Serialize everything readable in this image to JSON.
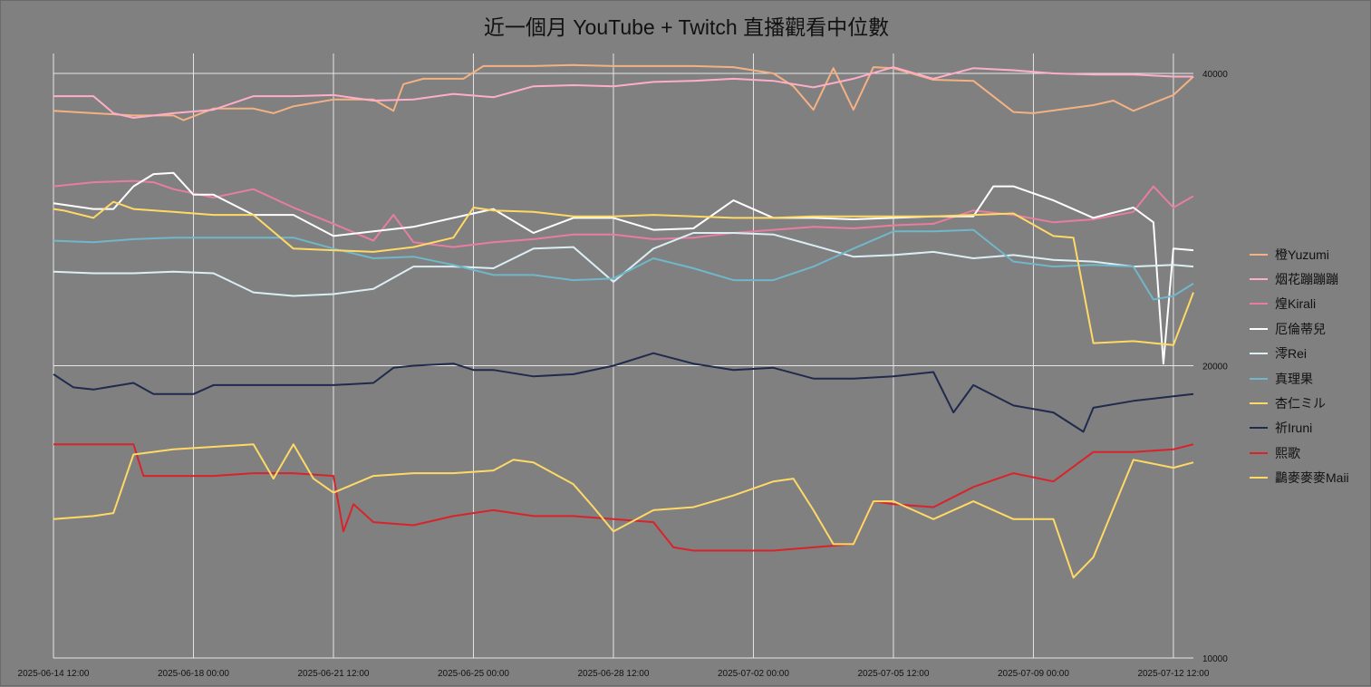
{
  "chart_data": {
    "type": "line",
    "title": "近一個月 YouTube + Twitch 直播觀看中位數",
    "xlabel": "",
    "ylabel": "",
    "y_scale": "log",
    "ylim": [
      10000,
      40000
    ],
    "y_ticks": [
      10000,
      20000,
      40000
    ],
    "y_tick_labels": [
      "10000",
      "20000",
      "40000"
    ],
    "x_tick_labels": [
      "2025-06-14 12:00",
      "2025-06-18 00:00",
      "2025-06-21 12:00",
      "2025-06-25 00:00",
      "2025-06-28 12:00",
      "2025-07-02 00:00",
      "2025-07-05 12:00",
      "2025-07-09 00:00",
      "2025-07-12 12:00"
    ],
    "xlim": [
      "2025-06-14 12:00",
      "2025-07-13 00:00"
    ],
    "grid": true,
    "legend_position": "right",
    "series": [
      {
        "name": "橙Yuzumi",
        "color": "#f4b183",
        "x": [
          "2025-06-14 12:00",
          "2025-06-15 12:00",
          "2025-06-16 12:00",
          "2025-06-17 12:00",
          "2025-06-17 18:00",
          "2025-06-18 12:00",
          "2025-06-19 12:00",
          "2025-06-20 00:00",
          "2025-06-20 12:00",
          "2025-06-21 12:00",
          "2025-06-22 12:00",
          "2025-06-23 00:00",
          "2025-06-23 06:00",
          "2025-06-23 18:00",
          "2025-06-24 18:00",
          "2025-06-25 06:00",
          "2025-06-26 12:00",
          "2025-06-27 12:00",
          "2025-06-28 12:00",
          "2025-06-29 12:00",
          "2025-06-30 12:00",
          "2025-07-01 12:00",
          "2025-07-02 12:00",
          "2025-07-03 00:00",
          "2025-07-03 12:00",
          "2025-07-04 00:00",
          "2025-07-04 12:00",
          "2025-07-05 00:00",
          "2025-07-05 12:00",
          "2025-07-06 12:00",
          "2025-07-07 12:00",
          "2025-07-08 12:00",
          "2025-07-09 00:00",
          "2025-07-10 12:00",
          "2025-07-11 00:00",
          "2025-07-11 12:00",
          "2025-07-12 12:00",
          "2025-07-13 00:00"
        ],
        "y": [
          36600,
          36400,
          36200,
          36200,
          35800,
          36800,
          36800,
          36400,
          37000,
          37600,
          37600,
          36600,
          39000,
          39500,
          39500,
          40700,
          40700,
          40800,
          40700,
          40700,
          40700,
          40600,
          40000,
          38800,
          36700,
          40500,
          36700,
          40600,
          40500,
          39400,
          39300,
          36500,
          36400,
          37100,
          37500,
          36600,
          38000,
          39700
        ]
      },
      {
        "name": "烟花蹦蹦蹦",
        "color": "#ffaec9",
        "x": [
          "2025-06-14 12:00",
          "2025-06-15 12:00",
          "2025-06-16 00:00",
          "2025-06-16 12:00",
          "2025-06-17 12:00",
          "2025-06-18 12:00",
          "2025-06-19 12:00",
          "2025-06-20 12:00",
          "2025-06-21 12:00",
          "2025-06-22 12:00",
          "2025-06-23 12:00",
          "2025-06-24 12:00",
          "2025-06-25 12:00",
          "2025-06-26 12:00",
          "2025-06-27 12:00",
          "2025-06-28 12:00",
          "2025-06-29 12:00",
          "2025-06-30 12:00",
          "2025-07-01 12:00",
          "2025-07-02 12:00",
          "2025-07-03 12:00",
          "2025-07-04 12:00",
          "2025-07-05 12:00",
          "2025-07-06 12:00",
          "2025-07-07 12:00",
          "2025-07-08 12:00",
          "2025-07-09 12:00",
          "2025-07-10 12:00",
          "2025-07-11 12:00",
          "2025-07-12 12:00",
          "2025-07-13 00:00"
        ],
        "y": [
          37900,
          37900,
          36400,
          36000,
          36400,
          36700,
          37900,
          37900,
          38000,
          37500,
          37600,
          38100,
          37800,
          38800,
          38900,
          38800,
          39200,
          39300,
          39500,
          39300,
          38700,
          39500,
          40600,
          39500,
          40500,
          40300,
          40000,
          39900,
          39900,
          39700,
          39700
        ]
      },
      {
        "name": "煌Kirali",
        "color": "#e87da0",
        "x": [
          "2025-06-14 12:00",
          "2025-06-15 12:00",
          "2025-06-16 12:00",
          "2025-06-17 00:00",
          "2025-06-17 12:00",
          "2025-06-18 12:00",
          "2025-06-19 12:00",
          "2025-06-20 12:00",
          "2025-06-21 12:00",
          "2025-06-22 12:00",
          "2025-06-23 00:00",
          "2025-06-23 12:00",
          "2025-06-24 12:00",
          "2025-06-25 12:00",
          "2025-06-26 12:00",
          "2025-06-27 12:00",
          "2025-06-28 12:00",
          "2025-06-29 12:00",
          "2025-06-30 12:00",
          "2025-07-01 12:00",
          "2025-07-02 12:00",
          "2025-07-03 12:00",
          "2025-07-04 12:00",
          "2025-07-05 12:00",
          "2025-07-06 12:00",
          "2025-07-07 12:00",
          "2025-07-08 12:00",
          "2025-07-09 12:00",
          "2025-07-10 12:00",
          "2025-07-11 12:00",
          "2025-07-12 00:00",
          "2025-07-12 12:00",
          "2025-07-13 00:00"
        ],
        "y": [
          30600,
          30900,
          31000,
          30900,
          30400,
          29800,
          30400,
          29100,
          28000,
          26900,
          28600,
          26800,
          26500,
          26800,
          27000,
          27300,
          27300,
          27000,
          27100,
          27400,
          27600,
          27800,
          27700,
          27900,
          28000,
          28900,
          28600,
          28100,
          28300,
          28800,
          30600,
          29100,
          29900
        ]
      },
      {
        "name": "厄倫蒂兒",
        "color": "#ffffff",
        "x": [
          "2025-06-14 12:00",
          "2025-06-15 12:00",
          "2025-06-16 00:00",
          "2025-06-16 12:00",
          "2025-06-17 00:00",
          "2025-06-17 12:00",
          "2025-06-18 00:00",
          "2025-06-18 12:00",
          "2025-06-19 12:00",
          "2025-06-20 12:00",
          "2025-06-21 12:00",
          "2025-06-22 12:00",
          "2025-06-23 12:00",
          "2025-06-24 12:00",
          "2025-06-25 12:00",
          "2025-06-26 12:00",
          "2025-06-27 12:00",
          "2025-06-28 12:00",
          "2025-06-29 12:00",
          "2025-06-30 12:00",
          "2025-07-01 12:00",
          "2025-07-02 12:00",
          "2025-07-03 12:00",
          "2025-07-04 12:00",
          "2025-07-05 12:00",
          "2025-07-06 12:00",
          "2025-07-07 12:00",
          "2025-07-08 00:00",
          "2025-07-08 12:00",
          "2025-07-09 12:00",
          "2025-07-10 12:00",
          "2025-07-11 12:00",
          "2025-07-12 00:00",
          "2025-07-12 06:00",
          "2025-07-12 12:00",
          "2025-07-13 00:00"
        ],
        "y": [
          29400,
          29000,
          29000,
          30600,
          31500,
          31600,
          30000,
          30000,
          28600,
          28600,
          27200,
          27500,
          27800,
          28400,
          29000,
          27400,
          28400,
          28400,
          27600,
          27700,
          29600,
          28400,
          28400,
          28300,
          28400,
          28500,
          28500,
          30600,
          30600,
          29600,
          28400,
          29100,
          28100,
          20100,
          26400,
          26300
        ]
      },
      {
        "name": "澪Rei",
        "color": "#dbeef4",
        "x": [
          "2025-06-14 12:00",
          "2025-06-15 12:00",
          "2025-06-16 12:00",
          "2025-06-17 12:00",
          "2025-06-18 12:00",
          "2025-06-19 12:00",
          "2025-06-20 12:00",
          "2025-06-21 12:00",
          "2025-06-22 12:00",
          "2025-06-23 12:00",
          "2025-06-24 12:00",
          "2025-06-25 12:00",
          "2025-06-26 12:00",
          "2025-06-27 12:00",
          "2025-06-28 12:00",
          "2025-06-29 12:00",
          "2025-06-30 12:00",
          "2025-07-01 12:00",
          "2025-07-02 12:00",
          "2025-07-03 12:00",
          "2025-07-04 12:00",
          "2025-07-05 12:00",
          "2025-07-06 12:00",
          "2025-07-07 12:00",
          "2025-07-08 12:00",
          "2025-07-09 12:00",
          "2025-07-10 12:00",
          "2025-07-11 12:00",
          "2025-07-12 12:00",
          "2025-07-13 00:00"
        ],
        "y": [
          25000,
          24900,
          24900,
          25000,
          24900,
          23800,
          23600,
          23700,
          24000,
          25300,
          25300,
          25200,
          26400,
          26500,
          24400,
          26400,
          27400,
          27400,
          27300,
          26600,
          25900,
          26000,
          26200,
          25800,
          26000,
          25700,
          25600,
          25300,
          25400,
          25300
        ]
      },
      {
        "name": "真理果",
        "color": "#6fb7c9",
        "x": [
          "2025-06-14 12:00",
          "2025-06-15 12:00",
          "2025-06-16 12:00",
          "2025-06-17 12:00",
          "2025-06-18 12:00",
          "2025-06-19 12:00",
          "2025-06-20 12:00",
          "2025-06-21 12:00",
          "2025-06-22 12:00",
          "2025-06-23 12:00",
          "2025-06-24 12:00",
          "2025-06-25 12:00",
          "2025-06-26 12:00",
          "2025-06-27 12:00",
          "2025-06-28 12:00",
          "2025-06-29 12:00",
          "2025-06-30 12:00",
          "2025-07-01 12:00",
          "2025-07-02 12:00",
          "2025-07-03 12:00",
          "2025-07-04 12:00",
          "2025-07-05 12:00",
          "2025-07-06 12:00",
          "2025-07-07 12:00",
          "2025-07-08 12:00",
          "2025-07-09 12:00",
          "2025-07-10 12:00",
          "2025-07-11 12:00",
          "2025-07-12 00:00",
          "2025-07-12 12:00",
          "2025-07-13 00:00"
        ],
        "y": [
          26900,
          26800,
          27000,
          27100,
          27100,
          27100,
          27100,
          26400,
          25800,
          25900,
          25400,
          24800,
          24800,
          24500,
          24600,
          25800,
          25200,
          24500,
          24500,
          25300,
          26400,
          27500,
          27500,
          27600,
          25600,
          25300,
          25400,
          25300,
          23400,
          23600,
          24300
        ]
      },
      {
        "name": "杏仁ミル",
        "color": "#ffd966",
        "x": [
          "2025-06-14 12:00",
          "2025-06-14 18:00",
          "2025-06-15 12:00",
          "2025-06-16 00:00",
          "2025-06-16 12:00",
          "2025-06-17 12:00",
          "2025-06-18 12:00",
          "2025-06-19 12:00",
          "2025-06-20 12:00",
          "2025-06-21 12:00",
          "2025-06-22 12:00",
          "2025-06-23 12:00",
          "2025-06-24 12:00",
          "2025-06-25 00:00",
          "2025-06-25 12:00",
          "2025-06-26 12:00",
          "2025-06-27 12:00",
          "2025-06-28 12:00",
          "2025-06-29 12:00",
          "2025-06-30 12:00",
          "2025-07-01 12:00",
          "2025-07-02 12:00",
          "2025-07-03 12:00",
          "2025-07-04 12:00",
          "2025-07-05 12:00",
          "2025-07-06 12:00",
          "2025-07-07 12:00",
          "2025-07-08 12:00",
          "2025-07-09 12:00",
          "2025-07-10 00:00",
          "2025-07-10 12:00",
          "2025-07-11 12:00",
          "2025-07-12 12:00",
          "2025-07-13 00:00"
        ],
        "y": [
          29000,
          28900,
          28400,
          29500,
          29000,
          28800,
          28600,
          28600,
          26400,
          26300,
          26200,
          26500,
          27100,
          29100,
          28900,
          28800,
          28500,
          28500,
          28600,
          28500,
          28400,
          28400,
          28500,
          28500,
          28500,
          28500,
          28600,
          28700,
          27200,
          27100,
          21100,
          21200,
          21000,
          23800
        ]
      },
      {
        "name": "祈Iruni",
        "color": "#1f2a4d",
        "x": [
          "2025-06-14 12:00",
          "2025-06-15 00:00",
          "2025-06-15 12:00",
          "2025-06-16 12:00",
          "2025-06-17 00:00",
          "2025-06-18 00:00",
          "2025-06-18 12:00",
          "2025-06-19 12:00",
          "2025-06-20 12:00",
          "2025-06-21 12:00",
          "2025-06-22 12:00",
          "2025-06-23 00:00",
          "2025-06-23 12:00",
          "2025-06-24 12:00",
          "2025-06-25 00:00",
          "2025-06-25 12:00",
          "2025-06-26 12:00",
          "2025-06-27 12:00",
          "2025-06-28 12:00",
          "2025-06-29 12:00",
          "2025-06-30 12:00",
          "2025-07-01 12:00",
          "2025-07-02 12:00",
          "2025-07-03 12:00",
          "2025-07-04 12:00",
          "2025-07-05 12:00",
          "2025-07-06 12:00",
          "2025-07-07 00:00",
          "2025-07-07 12:00",
          "2025-07-08 12:00",
          "2025-07-09 12:00",
          "2025-07-10 06:00",
          "2025-07-10 12:00",
          "2025-07-11 12:00",
          "2025-07-12 12:00",
          "2025-07-13 00:00"
        ],
        "y": [
          19600,
          19000,
          18900,
          19200,
          18700,
          18700,
          19100,
          19100,
          19100,
          19100,
          19200,
          19900,
          20000,
          20100,
          19800,
          19800,
          19500,
          19600,
          20000,
          20600,
          20100,
          19800,
          19900,
          19400,
          19400,
          19500,
          19700,
          17900,
          19100,
          18200,
          17900,
          17100,
          18100,
          18400,
          18600,
          18700
        ]
      },
      {
        "name": "熙歌",
        "color": "#d9232b",
        "x": [
          "2025-06-14 12:00",
          "2025-06-16 12:00",
          "2025-06-16 18:00",
          "2025-06-17 12:00",
          "2025-06-18 12:00",
          "2025-06-19 12:00",
          "2025-06-20 12:00",
          "2025-06-21 12:00",
          "2025-06-21 18:00",
          "2025-06-22 00:00",
          "2025-06-22 12:00",
          "2025-06-23 12:00",
          "2025-06-24 12:00",
          "2025-06-25 12:00",
          "2025-06-26 12:00",
          "2025-06-27 12:00",
          "2025-06-28 12:00",
          "2025-06-29 12:00",
          "2025-06-30 00:00",
          "2025-06-30 12:00",
          "2025-07-01 12:00",
          "2025-07-02 12:00",
          "2025-07-03 12:00",
          "2025-07-04 12:00",
          "2025-07-05 00:00",
          "2025-07-05 12:00",
          "2025-07-06 12:00",
          "2025-07-07 12:00",
          "2025-07-08 12:00",
          "2025-07-09 12:00",
          "2025-07-10 12:00",
          "2025-07-11 12:00",
          "2025-07-12 12:00",
          "2025-07-13 00:00"
        ],
        "y": [
          16600,
          16600,
          15400,
          15400,
          15400,
          15500,
          15500,
          15400,
          13500,
          14400,
          13800,
          13700,
          14000,
          14200,
          14000,
          14000,
          13900,
          13800,
          13000,
          12900,
          12900,
          12900,
          13000,
          13100,
          14500,
          14400,
          14300,
          15000,
          15500,
          15200,
          16300,
          16300,
          16400,
          16600
        ]
      },
      {
        "name": "鸓麥麥麥Maii",
        "color": "#ffd966",
        "x": [
          "2025-06-14 12:00",
          "2025-06-15 12:00",
          "2025-06-16 00:00",
          "2025-06-16 12:00",
          "2025-06-17 12:00",
          "2025-06-18 12:00",
          "2025-06-19 12:00",
          "2025-06-20 00:00",
          "2025-06-20 12:00",
          "2025-06-21 00:00",
          "2025-06-21 12:00",
          "2025-06-22 12:00",
          "2025-06-23 12:00",
          "2025-06-24 12:00",
          "2025-06-25 12:00",
          "2025-06-26 00:00",
          "2025-06-26 12:00",
          "2025-06-27 12:00",
          "2025-06-28 00:00",
          "2025-06-28 12:00",
          "2025-06-29 12:00",
          "2025-06-30 12:00",
          "2025-07-01 12:00",
          "2025-07-02 12:00",
          "2025-07-03 00:00",
          "2025-07-03 12:00",
          "2025-07-04 00:00",
          "2025-07-04 12:00",
          "2025-07-05 00:00",
          "2025-07-05 12:00",
          "2025-07-06 12:00",
          "2025-07-07 12:00",
          "2025-07-08 12:00",
          "2025-07-09 12:00",
          "2025-07-10 00:00",
          "2025-07-10 12:00",
          "2025-07-11 12:00",
          "2025-07-12 12:00",
          "2025-07-13 00:00"
        ],
        "y": [
          13900,
          14000,
          14100,
          16200,
          16400,
          16500,
          16600,
          15300,
          16600,
          15300,
          14800,
          15400,
          15500,
          15500,
          15600,
          16000,
          15900,
          15100,
          14300,
          13500,
          14200,
          14300,
          14700,
          15200,
          15300,
          14200,
          13100,
          13100,
          14500,
          14500,
          13900,
          14500,
          13900,
          13900,
          12100,
          12700,
          16000,
          15700,
          15900
        ]
      }
    ]
  }
}
